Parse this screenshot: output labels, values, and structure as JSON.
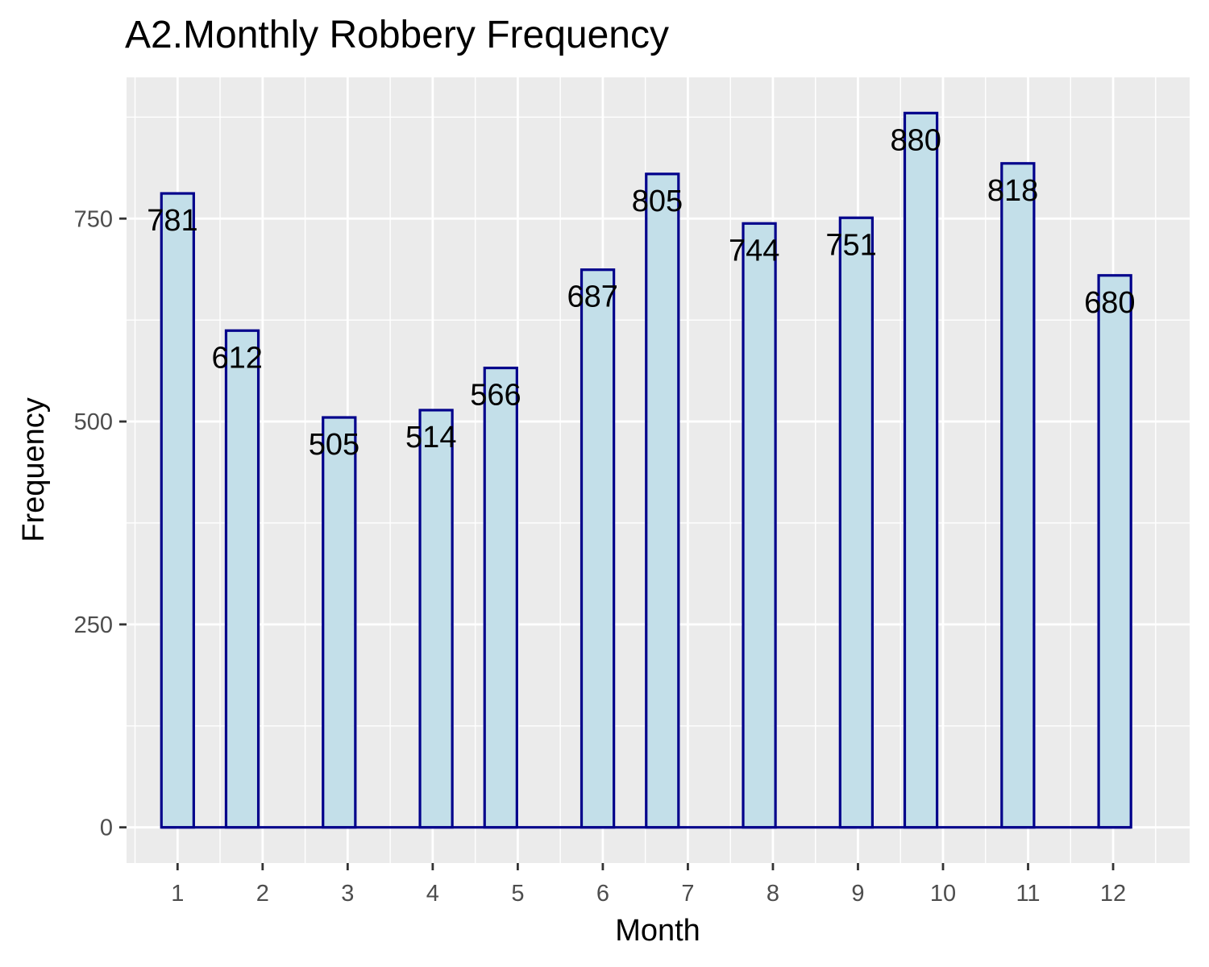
{
  "chart_data": {
    "type": "bar",
    "title": "A2.Monthly Robbery Frequency",
    "xlabel": "Month",
    "ylabel": "Frequency",
    "categories": [
      "1",
      "2",
      "3",
      "4",
      "5",
      "6",
      "7",
      "8",
      "9",
      "10",
      "11",
      "12"
    ],
    "values": [
      781,
      612,
      505,
      514,
      566,
      687,
      805,
      744,
      751,
      880,
      818,
      680
    ],
    "data_labels": [
      "781",
      "612",
      "505",
      "514",
      "566",
      "687",
      "805",
      "744",
      "751",
      "880",
      "818",
      "680"
    ],
    "x_ticks": [
      "1",
      "2",
      "3",
      "4",
      "5",
      "6",
      "7",
      "8",
      "9",
      "10",
      "11",
      "12"
    ],
    "x_range": [
      0.4,
      12.9
    ],
    "y_ticks": [
      "0",
      "250",
      "500",
      "750"
    ],
    "y_tick_values": [
      0,
      250,
      500,
      750
    ],
    "ylim": [
      -44,
      924
    ],
    "bar_centers": [
      1.0,
      1.76,
      2.9,
      4.04,
      4.8,
      5.94,
      6.7,
      7.84,
      8.98,
      9.74,
      10.88,
      12.02
    ],
    "bar_width": 0.38,
    "grid": true,
    "colors": {
      "panel_background": "#ebebeb",
      "grid": "#ffffff",
      "bar_fill": "#c3dfe9",
      "bar_outline": "#00008b",
      "text": "#000000",
      "tick_text": "#4d4d4d"
    }
  }
}
